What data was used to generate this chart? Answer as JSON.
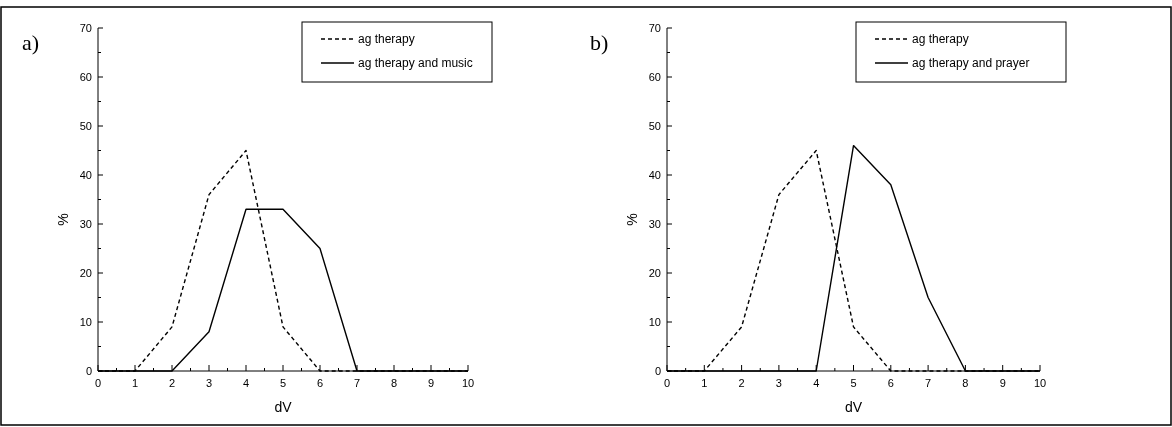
{
  "chart_data": [
    {
      "type": "line",
      "title": "a)",
      "xlabel": "dV",
      "ylabel": "%",
      "x": [
        0,
        1,
        2,
        3,
        4,
        5,
        6,
        7,
        8,
        9,
        10
      ],
      "xlim": [
        0,
        10
      ],
      "ylim": [
        0,
        70
      ],
      "xticks": [
        0,
        {
          "value": 0.5,
          "label": null
        },
        1,
        {
          "value": 1.5,
          "label": null
        },
        2,
        {
          "value": 2.5,
          "label": null
        },
        3,
        {
          "value": 3.5,
          "label": null
        },
        4,
        {
          "value": 4.5,
          "label": null
        },
        5,
        {
          "value": 5.5,
          "label": null
        },
        6,
        {
          "value": 6.5,
          "label": null
        },
        7,
        {
          "value": 7.5,
          "label": null
        },
        8,
        {
          "value": 8.5,
          "label": null
        },
        9,
        {
          "value": 9.5,
          "label": null
        },
        10
      ],
      "yticks": [
        0,
        {
          "value": 5,
          "label": null
        },
        10,
        {
          "value": 15,
          "label": null
        },
        20,
        {
          "value": 25,
          "label": null
        },
        30,
        {
          "value": 35,
          "label": null
        },
        40,
        {
          "value": 45,
          "label": null
        },
        50,
        {
          "value": 55,
          "label": null
        },
        60,
        {
          "value": 65,
          "label": null
        },
        70
      ],
      "legend": "top right",
      "marker": "none",
      "series": [
        {
          "name": "ag therapy",
          "color": "#000000",
          "line_style": "dashed",
          "values": [
            0,
            0,
            9,
            36,
            45,
            9,
            0,
            0,
            0,
            0,
            0
          ]
        },
        {
          "name": "ag therapy and music",
          "color": "#000000",
          "line_style": "solid",
          "values": [
            0,
            0,
            0,
            8,
            33,
            33,
            25,
            0,
            0,
            0,
            0
          ]
        }
      ]
    },
    {
      "type": "line",
      "title": "b)",
      "xlabel": "dV",
      "ylabel": "%",
      "x": [
        0,
        1,
        2,
        3,
        4,
        5,
        6,
        7,
        8,
        9,
        10
      ],
      "xlim": [
        0,
        10
      ],
      "ylim": [
        0,
        70
      ],
      "xticks": [
        0,
        {
          "value": 0.5,
          "label": null
        },
        1,
        {
          "value": 1.5,
          "label": null
        },
        2,
        {
          "value": 2.5,
          "label": null
        },
        3,
        {
          "value": 3.5,
          "label": null
        },
        4,
        {
          "value": 4.5,
          "label": null
        },
        5,
        {
          "value": 5.5,
          "label": null
        },
        6,
        {
          "value": 6.5,
          "label": null
        },
        7,
        {
          "value": 7.5,
          "label": null
        },
        8,
        {
          "value": 8.5,
          "label": null
        },
        9,
        {
          "value": 9.5,
          "label": null
        },
        10
      ],
      "yticks": [
        0,
        {
          "value": 5,
          "label": null
        },
        10,
        {
          "value": 15,
          "label": null
        },
        20,
        {
          "value": 25,
          "label": null
        },
        30,
        {
          "value": 35,
          "label": null
        },
        40,
        {
          "value": 45,
          "label": null
        },
        50,
        {
          "value": 55,
          "label": null
        },
        60,
        {
          "value": 65,
          "label": null
        },
        70
      ],
      "legend": "top right",
      "marker": "none",
      "series": [
        {
          "name": "ag therapy",
          "color": "#000000",
          "line_style": "dashed",
          "values": [
            0,
            0,
            9,
            36,
            45,
            9,
            0,
            0,
            0,
            0,
            0
          ]
        },
        {
          "name": "ag therapy and prayer",
          "color": "#000000",
          "line_style": "solid",
          "values": [
            0,
            0,
            0,
            0,
            0,
            46,
            38,
            15,
            0,
            0,
            0
          ]
        }
      ]
    }
  ]
}
